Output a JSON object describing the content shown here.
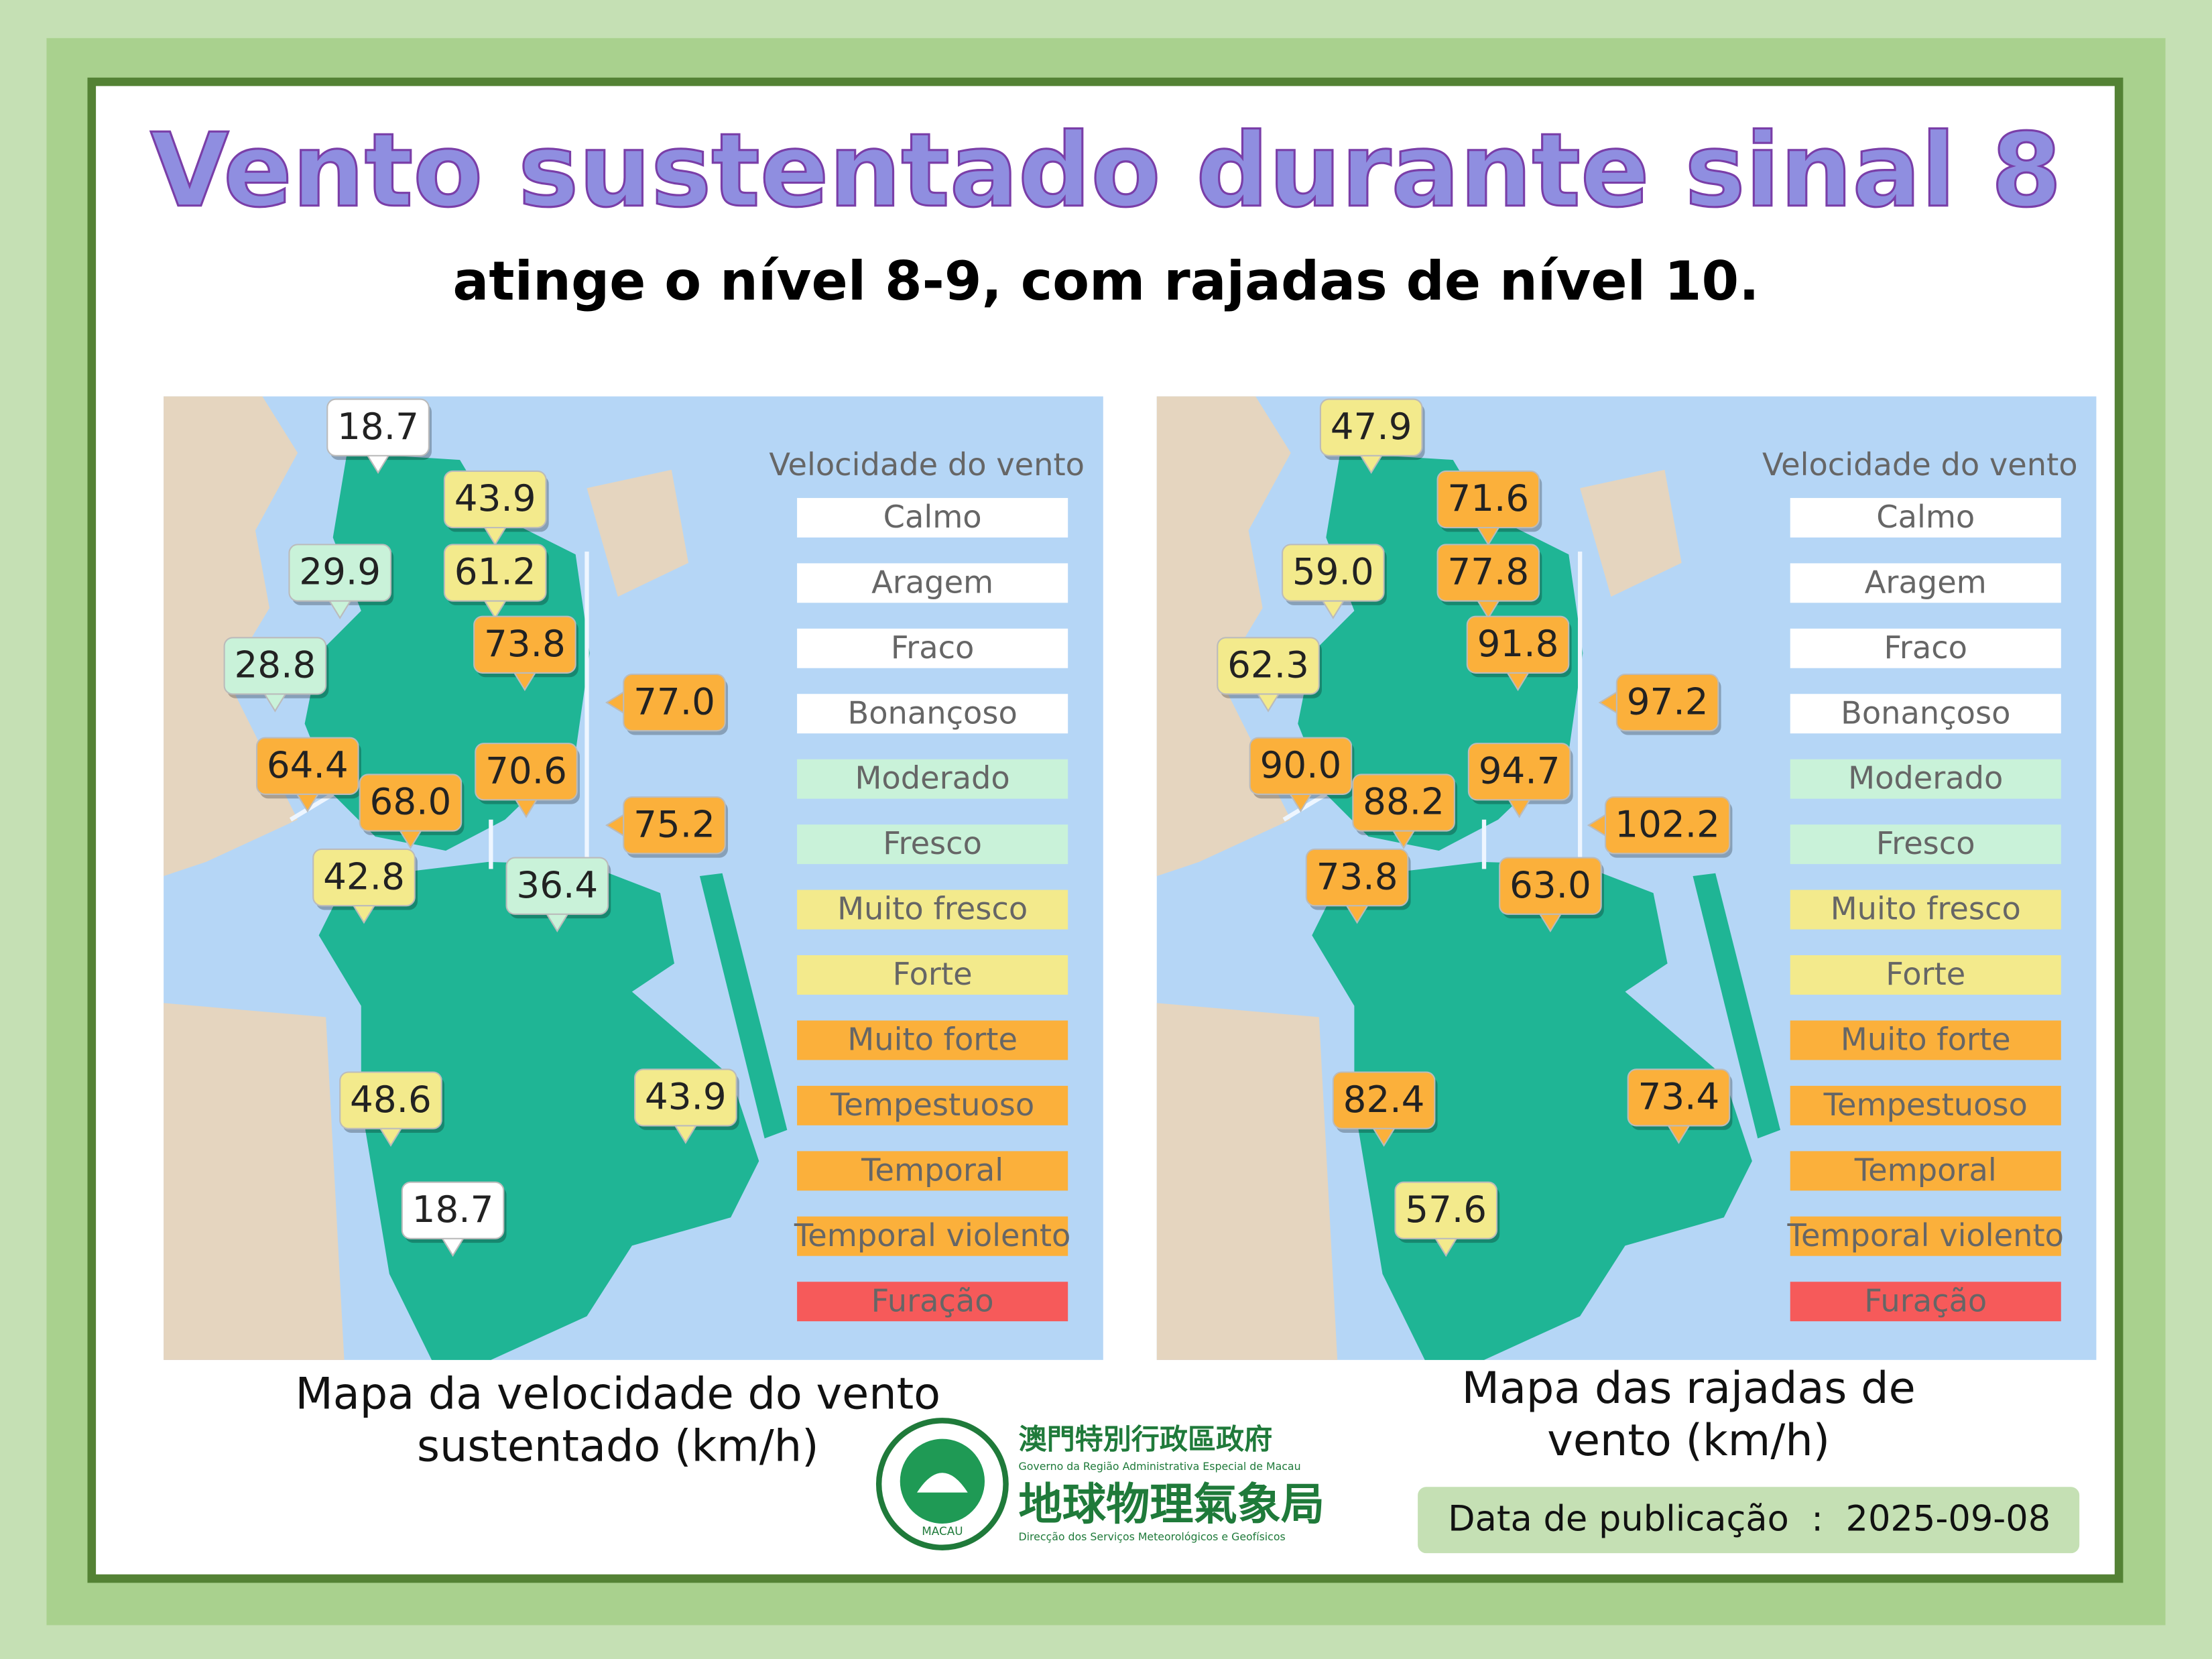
{
  "title": "Vento sustentado durante sinal 8",
  "subtitle": "atinge o nível 8-9, com rajadas de nível 10.",
  "maps": [
    {
      "caption": [
        "Mapa da velocidade do vento",
        "sustentado (km/h)"
      ],
      "stations": [
        {
          "label": "18.7",
          "color": "#ffffff"
        },
        {
          "label": "43.9",
          "color": "#f3ea8c"
        },
        {
          "label": "29.9",
          "color": "#c9f2d9"
        },
        {
          "label": "61.2",
          "color": "#f3ea8c"
        },
        {
          "label": "28.8",
          "color": "#c9f2d9"
        },
        {
          "label": "73.8",
          "color": "#fbb03b"
        },
        {
          "label": "77.0",
          "color": "#fbb03b"
        },
        {
          "label": "64.4",
          "color": "#fbb03b"
        },
        {
          "label": "68.0",
          "color": "#fbb03b"
        },
        {
          "label": "70.6",
          "color": "#fbb03b"
        },
        {
          "label": "75.2",
          "color": "#fbb03b"
        },
        {
          "label": "42.8",
          "color": "#f3ea8c"
        },
        {
          "label": "36.4",
          "color": "#c9f2d9"
        },
        {
          "label": "48.6",
          "color": "#f3ea8c"
        },
        {
          "label": "43.9",
          "color": "#f3ea8c"
        },
        {
          "label": "18.7",
          "color": "#ffffff"
        }
      ]
    },
    {
      "caption": [
        "Mapa das rajadas de",
        "vento (km/h)"
      ],
      "stations": [
        {
          "label": "47.9",
          "color": "#f3ea8c"
        },
        {
          "label": "71.6",
          "color": "#fbb03b"
        },
        {
          "label": "59.0",
          "color": "#f3ea8c"
        },
        {
          "label": "77.8",
          "color": "#fbb03b"
        },
        {
          "label": "62.3",
          "color": "#f3ea8c"
        },
        {
          "label": "91.8",
          "color": "#fbb03b"
        },
        {
          "label": "97.2",
          "color": "#fbb03b"
        },
        {
          "label": "90.0",
          "color": "#fbb03b"
        },
        {
          "label": "88.2",
          "color": "#fbb03b"
        },
        {
          "label": "94.7",
          "color": "#fbb03b"
        },
        {
          "label": "102.2",
          "color": "#fbb03b"
        },
        {
          "label": "73.8",
          "color": "#fbb03b"
        },
        {
          "label": "63.0",
          "color": "#fbb03b"
        },
        {
          "label": "82.4",
          "color": "#fbb03b"
        },
        {
          "label": "73.4",
          "color": "#fbb03b"
        },
        {
          "label": "57.6",
          "color": "#f3ea8c"
        }
      ]
    }
  ],
  "legend": {
    "title": "Velocidade do vento",
    "items": [
      {
        "label": "Calmo",
        "color": "#ffffff"
      },
      {
        "label": "Aragem",
        "color": "#ffffff"
      },
      {
        "label": "Fraco",
        "color": "#ffffff"
      },
      {
        "label": "Bonançoso",
        "color": "#ffffff"
      },
      {
        "label": "Moderado",
        "color": "#c9f2d9"
      },
      {
        "label": "Fresco",
        "color": "#c9f2d9"
      },
      {
        "label": "Muito fresco",
        "color": "#f3ea8c"
      },
      {
        "label": "Forte",
        "color": "#f3ea8c"
      },
      {
        "label": "Muito forte",
        "color": "#fbb03b"
      },
      {
        "label": "Tempestuoso",
        "color": "#fbb03b"
      },
      {
        "label": "Temporal",
        "color": "#fbb03b"
      },
      {
        "label": "Temporal violento",
        "color": "#fbb03b"
      },
      {
        "label": "Furação",
        "color": "#f65a5a"
      }
    ]
  },
  "logo": {
    "ring": "MACAU",
    "gov_zh": "澳門特別行政區政府",
    "gov_pt": "Governo da Região Administrativa Especial de Macau",
    "dept_zh": "地球物理氣象局",
    "dept_pt": "Direcção dos Serviços Meteorológicos e Geofísicos"
  },
  "publication": "Data de publicação  :  2025-09-08"
}
